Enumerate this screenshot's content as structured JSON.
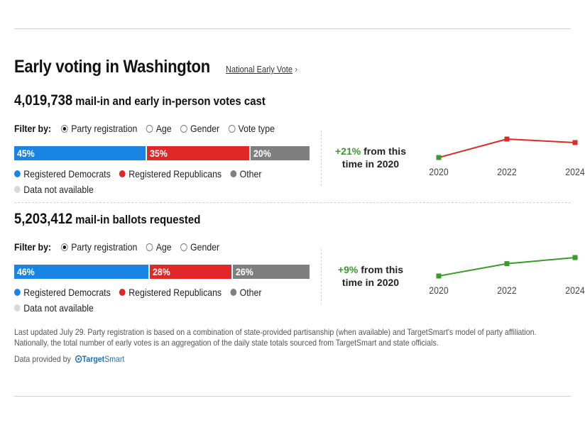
{
  "header": {
    "title": "Early voting in Washington",
    "link_label": "National Early Vote",
    "link_chevron": "›"
  },
  "filter_label": "Filter by:",
  "legend_labels": {
    "dem": "Registered Democrats",
    "rep": "Registered Republicans",
    "other": "Other",
    "na": "Data not available"
  },
  "colors": {
    "dem": "#1a84e4",
    "rep": "#e02828",
    "other": "#7f7f7f",
    "na": "#d9d9d9",
    "trend_up": "#3a9a2a"
  },
  "votes_cast": {
    "count": "4,019,738",
    "label": "mail-in and early in-person votes cast",
    "filters": [
      {
        "label": "Party registration",
        "selected": true
      },
      {
        "label": "Age",
        "selected": false
      },
      {
        "label": "Gender",
        "selected": false
      },
      {
        "label": "Vote type",
        "selected": false
      }
    ],
    "bar": [
      {
        "key": "dem",
        "label": "45%",
        "value": 45
      },
      {
        "key": "rep",
        "label": "35%",
        "value": 35
      },
      {
        "key": "other",
        "label": "20%",
        "value": 20
      }
    ],
    "change_pct": "+21%",
    "change_text_1": "from this",
    "change_text_2": "time in 2020",
    "chart_data": {
      "type": "line",
      "x": [
        "2020",
        "2022",
        "2024"
      ],
      "relative_values": [
        0.0,
        1.0,
        0.81
      ],
      "point_colors": [
        "#3a9a2a",
        "#e02828",
        "#e02828"
      ]
    }
  },
  "ballots_requested": {
    "count": "5,203,412",
    "label": "mail-in ballots requested",
    "filters": [
      {
        "label": "Party registration",
        "selected": true
      },
      {
        "label": "Age",
        "selected": false
      },
      {
        "label": "Gender",
        "selected": false
      }
    ],
    "bar": [
      {
        "key": "dem",
        "label": "46%",
        "value": 46
      },
      {
        "key": "rep",
        "label": "28%",
        "value": 28
      },
      {
        "key": "other",
        "label": "26%",
        "value": 26
      }
    ],
    "change_pct": "+9%",
    "change_text_1": "from this",
    "change_text_2": "time in 2020",
    "chart_data": {
      "type": "line",
      "x": [
        "2020",
        "2022",
        "2024"
      ],
      "relative_values": [
        0.0,
        0.67,
        1.0
      ],
      "point_colors": [
        "#3a9a2a",
        "#3a9a2a",
        "#3a9a2a"
      ]
    }
  },
  "footnote": "Last updated July 29. Party registration is based on a combination of state-provided partisanship (when available) and TargetSmart's model of party affiliation. Nationally, the total number of early votes is an aggregation of the daily state totals sourced from TargetSmart and state officials.",
  "provided_by": "Data provided by",
  "brand": {
    "part1": "Target",
    "part2": "Smart"
  }
}
